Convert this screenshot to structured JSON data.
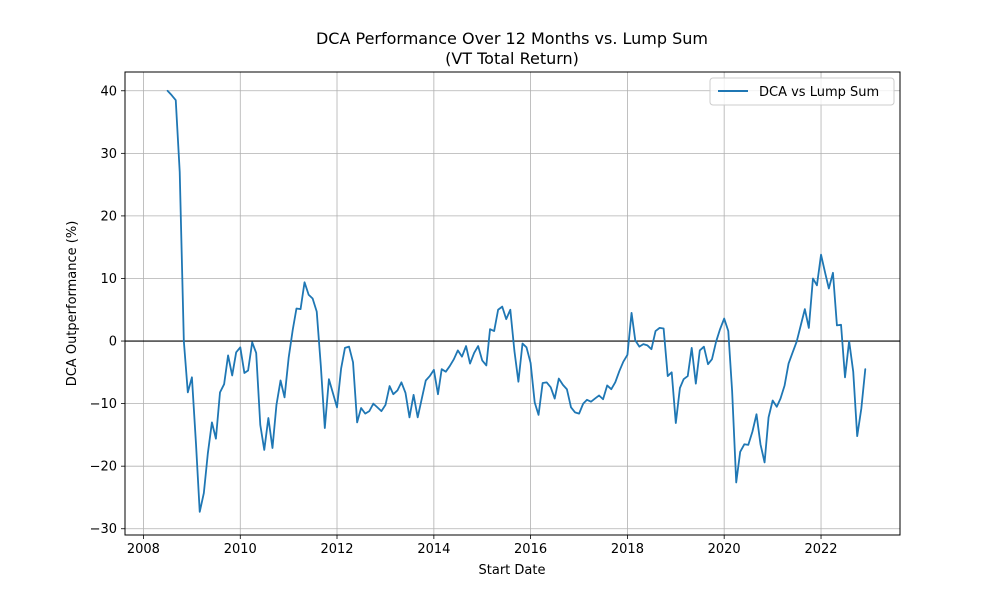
{
  "chart_data": {
    "type": "line",
    "title": "DCA Performance Over 12 Months vs. Lump Sum",
    "subtitle": "(VT Total Return)",
    "xlabel": "Start Date",
    "ylabel": "DCA Outperformance (%)",
    "xlim": [
      "2007-08-15",
      "2023-08-20"
    ],
    "ylim": [
      -31,
      43
    ],
    "x_ticks": [
      "2008-01-01",
      "2010-01-01",
      "2012-01-01",
      "2014-01-01",
      "2016-01-01",
      "2018-01-01",
      "2020-01-01",
      "2022-01-01"
    ],
    "x_tick_labels": [
      "2008",
      "2010",
      "2012",
      "2014",
      "2016",
      "2018",
      "2020",
      "2022"
    ],
    "y_ticks": [
      -30,
      -20,
      -10,
      0,
      10,
      20,
      30,
      40
    ],
    "y_tick_labels": [
      "−30",
      "−20",
      "−10",
      "0",
      "10",
      "20",
      "30",
      "40"
    ],
    "grid": true,
    "reference_line_y": 0,
    "legend_position": "top-right",
    "series": [
      {
        "name": "DCA vs Lump Sum",
        "color": "#1f77b4",
        "x": [
          "2008-07-01",
          "2008-08-01",
          "2008-09-01",
          "2008-10-01",
          "2008-11-01",
          "2008-12-01",
          "2009-01-01",
          "2009-02-01",
          "2009-03-01",
          "2009-04-01",
          "2009-05-01",
          "2009-06-01",
          "2009-07-01",
          "2009-08-01",
          "2009-09-01",
          "2009-10-01",
          "2009-11-01",
          "2009-12-01",
          "2010-01-01",
          "2010-02-01",
          "2010-03-01",
          "2010-04-01",
          "2010-05-01",
          "2010-06-01",
          "2010-07-01",
          "2010-08-01",
          "2010-09-01",
          "2010-10-01",
          "2010-11-01",
          "2010-12-01",
          "2011-01-01",
          "2011-02-01",
          "2011-03-01",
          "2011-04-01",
          "2011-05-01",
          "2011-06-01",
          "2011-07-01",
          "2011-08-01",
          "2011-09-01",
          "2011-10-01",
          "2011-11-01",
          "2011-12-01",
          "2012-01-01",
          "2012-02-01",
          "2012-03-01",
          "2012-04-01",
          "2012-05-01",
          "2012-06-01",
          "2012-07-01",
          "2012-08-01",
          "2012-09-01",
          "2012-10-01",
          "2012-11-01",
          "2012-12-01",
          "2013-01-01",
          "2013-02-01",
          "2013-03-01",
          "2013-04-01",
          "2013-05-01",
          "2013-06-01",
          "2013-07-01",
          "2013-08-01",
          "2013-09-01",
          "2013-10-01",
          "2013-11-01",
          "2013-12-01",
          "2014-01-01",
          "2014-02-01",
          "2014-03-01",
          "2014-04-01",
          "2014-05-01",
          "2014-06-01",
          "2014-07-01",
          "2014-08-01",
          "2014-09-01",
          "2014-10-01",
          "2014-11-01",
          "2014-12-01",
          "2015-01-01",
          "2015-02-01",
          "2015-03-01",
          "2015-04-01",
          "2015-05-01",
          "2015-06-01",
          "2015-07-01",
          "2015-08-01",
          "2015-09-01",
          "2015-10-01",
          "2015-11-01",
          "2015-12-01",
          "2016-01-01",
          "2016-02-01",
          "2016-03-01",
          "2016-04-01",
          "2016-05-01",
          "2016-06-01",
          "2016-07-01",
          "2016-08-01",
          "2016-09-01",
          "2016-10-01",
          "2016-11-01",
          "2016-12-01",
          "2017-01-01",
          "2017-02-01",
          "2017-03-01",
          "2017-04-01",
          "2017-05-01",
          "2017-06-01",
          "2017-07-01",
          "2017-08-01",
          "2017-09-01",
          "2017-10-01",
          "2017-11-01",
          "2017-12-01",
          "2018-01-01",
          "2018-02-01",
          "2018-03-01",
          "2018-04-01",
          "2018-05-01",
          "2018-06-01",
          "2018-07-01",
          "2018-08-01",
          "2018-09-01",
          "2018-10-01",
          "2018-11-01",
          "2018-12-01",
          "2019-01-01",
          "2019-02-01",
          "2019-03-01",
          "2019-04-01",
          "2019-05-01",
          "2019-06-01",
          "2019-07-01",
          "2019-08-01",
          "2019-09-01",
          "2019-10-01",
          "2019-11-01",
          "2019-12-01",
          "2020-01-01",
          "2020-02-01",
          "2020-03-01",
          "2020-04-01",
          "2020-05-01",
          "2020-06-01",
          "2020-07-01",
          "2020-08-01",
          "2020-09-01",
          "2020-10-01",
          "2020-11-01",
          "2020-12-01",
          "2021-01-01",
          "2021-02-01",
          "2021-03-01",
          "2021-04-01",
          "2021-05-01",
          "2021-06-01",
          "2021-07-01",
          "2021-08-01",
          "2021-09-01",
          "2021-10-01",
          "2021-11-01",
          "2021-12-01",
          "2022-01-01",
          "2022-02-01",
          "2022-03-01",
          "2022-04-01",
          "2022-05-01",
          "2022-06-01",
          "2022-07-01",
          "2022-08-01",
          "2022-09-01",
          "2022-10-01",
          "2022-11-01",
          "2022-12-01"
        ],
        "y": [
          40,
          39.3,
          38.5,
          27,
          0,
          -8.2,
          -5.8,
          -16.5,
          -27.3,
          -24.3,
          -18,
          -13,
          -15.6,
          -8.2,
          -6.9,
          -2.3,
          -5.5,
          -1.8,
          -1,
          -5.1,
          -4.7,
          -0.2,
          -1.9,
          -13.4,
          -17.4,
          -12.3,
          -17.1,
          -10.2,
          -6.3,
          -9,
          -2.7,
          1.8,
          5.2,
          5.1,
          9.4,
          7.4,
          6.8,
          4.7,
          -4,
          -13.9,
          -6.1,
          -8.3,
          -10.6,
          -4.4,
          -1.1,
          -0.9,
          -3.4,
          -13,
          -10.7,
          -11.6,
          -11.2,
          -10,
          -10.6,
          -11.2,
          -10.2,
          -7.2,
          -8.5,
          -7.9,
          -6.6,
          -8.3,
          -12.2,
          -8.6,
          -12.2,
          -9.3,
          -6.3,
          -5.6,
          -4.6,
          -8.5,
          -4.5,
          -4.9,
          -4,
          -2.9,
          -1.5,
          -2.5,
          -0.8,
          -3.6,
          -1.9,
          -0.8,
          -3.1,
          -3.9,
          1.9,
          1.6,
          5,
          5.5,
          3.5,
          5,
          -1.6,
          -6.5,
          -0.4,
          -1,
          -3.5,
          -9.8,
          -11.8,
          -6.7,
          -6.6,
          -7.4,
          -9.2,
          -6,
          -7,
          -7.7,
          -10.6,
          -11.4,
          -11.6,
          -10,
          -9.4,
          -9.7,
          -9.2,
          -8.7,
          -9.3,
          -7.1,
          -7.7,
          -6.6,
          -4.8,
          -3.3,
          -2.2,
          4.5,
          0.1,
          -0.9,
          -0.5,
          -0.7,
          -1.3,
          1.6,
          2.1,
          2,
          -5.6,
          -5,
          -13.1,
          -7.5,
          -6.1,
          -5.6,
          -1.1,
          -6.8,
          -1.5,
          -0.9,
          -3.7,
          -2.9,
          -0.1,
          1.9,
          3.6,
          1.6,
          -8,
          -22.6,
          -17.7,
          -16.5,
          -16.6,
          -14.5,
          -11.7,
          -16.5,
          -19.4,
          -12.2,
          -9.5,
          -10.5,
          -9.2,
          -7.1,
          -3.6,
          -1.8,
          -0.1,
          2.5,
          5.1,
          2.1,
          10,
          8.9,
          13.8,
          10.9,
          8.4,
          10.9,
          2.5,
          2.6,
          -5.8,
          0,
          -4.9,
          -15.2,
          -10.8,
          -4.5
        ]
      }
    ]
  }
}
